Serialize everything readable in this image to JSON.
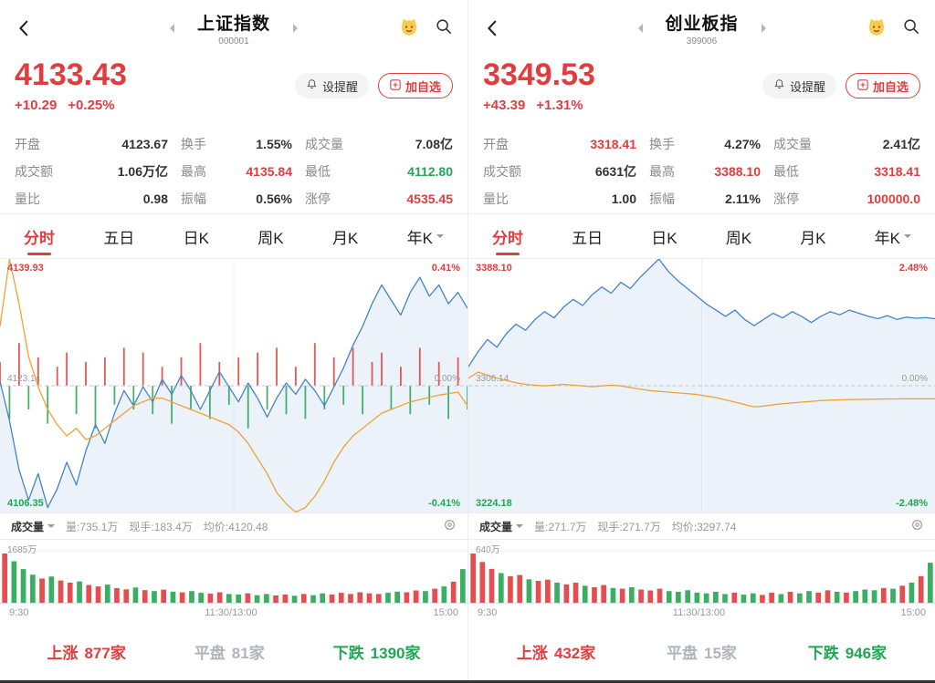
{
  "panels": [
    {
      "header": {
        "title": "上证指数",
        "code": "000001"
      },
      "price": {
        "value": "4133.43",
        "change": "+10.29",
        "pct": "+0.25%"
      },
      "actions": {
        "alert": "设提醒",
        "add": "加自选"
      },
      "stats": [
        {
          "label": "开盘",
          "value": "4123.67",
          "color": "dark"
        },
        {
          "label": "换手",
          "value": "1.55%",
          "color": "dark"
        },
        {
          "label": "成交量",
          "value": "7.08亿",
          "color": "dark"
        },
        {
          "label": "成交额",
          "value": "1.06万亿",
          "color": "dark"
        },
        {
          "label": "最高",
          "value": "4135.84",
          "color": "red"
        },
        {
          "label": "最低",
          "value": "4112.80",
          "color": "green"
        },
        {
          "label": "量比",
          "value": "0.98",
          "color": "dark"
        },
        {
          "label": "振幅",
          "value": "0.56%",
          "color": "dark"
        },
        {
          "label": "涨停",
          "value": "4535.45",
          "color": "red"
        }
      ],
      "tabs": [
        "分时",
        "五日",
        "日K",
        "周K",
        "月K",
        "年K"
      ],
      "chart_labels": {
        "high": "4139.93",
        "high_pct": "0.41%",
        "mid": "4123.14",
        "mid_pct": "0.00%",
        "low": "4106.35",
        "low_pct": "-0.41%"
      },
      "info": {
        "dropdown": "成交量",
        "volume": "量:735.1万",
        "current": "现手:183.4万",
        "avg": "均价:4120.48"
      },
      "volume_label": "1685万",
      "times": [
        "9:30",
        "11:30/13:00",
        "15:00"
      ],
      "breadth": {
        "up_label": "上涨",
        "up": "877家",
        "flat_label": "平盘",
        "flat": "81家",
        "down_label": "下跌",
        "down": "1390家"
      }
    },
    {
      "header": {
        "title": "创业板指",
        "code": "399006"
      },
      "price": {
        "value": "3349.53",
        "change": "+43.39",
        "pct": "+1.31%"
      },
      "actions": {
        "alert": "设提醒",
        "add": "加自选"
      },
      "stats": [
        {
          "label": "开盘",
          "value": "3318.41",
          "color": "red"
        },
        {
          "label": "换手",
          "value": "4.27%",
          "color": "dark"
        },
        {
          "label": "成交量",
          "value": "2.41亿",
          "color": "dark"
        },
        {
          "label": "成交额",
          "value": "6631亿",
          "color": "dark"
        },
        {
          "label": "最高",
          "value": "3388.10",
          "color": "red"
        },
        {
          "label": "最低",
          "value": "3318.41",
          "color": "red"
        },
        {
          "label": "量比",
          "value": "1.00",
          "color": "dark"
        },
        {
          "label": "振幅",
          "value": "2.11%",
          "color": "dark"
        },
        {
          "label": "涨停",
          "value": "100000.0",
          "color": "red"
        }
      ],
      "tabs": [
        "分时",
        "五日",
        "日K",
        "周K",
        "月K",
        "年K"
      ],
      "chart_labels": {
        "high": "3388.10",
        "high_pct": "2.48%",
        "mid": "3306.14",
        "mid_pct": "0.00%",
        "low": "3224.18",
        "low_pct": "-2.48%"
      },
      "info": {
        "dropdown": "成交量",
        "volume": "量:271.7万",
        "current": "现手:271.7万",
        "avg": "均价:3297.74"
      },
      "volume_label": "640万",
      "times": [
        "9:30",
        "11:30/13:00",
        "15:00"
      ],
      "breadth": {
        "up_label": "上涨",
        "up": "432家",
        "flat_label": "平盘",
        "flat": "15家",
        "down_label": "下跌",
        "down": "946家"
      }
    }
  ],
  "chart_data": [
    {
      "type": "line",
      "title": "上证指数 分时",
      "x_ticks": [
        "9:30",
        "11:30/13:00",
        "15:00"
      ],
      "ylim": [
        4106.35,
        4139.93
      ],
      "baseline": 4123.14,
      "pct_range": [
        "-0.41%",
        "0.41%"
      ],
      "series": [
        {
          "name": "价格",
          "color": "#4583cc",
          "values": [
            4123.7,
            4118.5,
            4112.0,
            4108.0,
            4111.5,
            4107.0,
            4109.5,
            4113.0,
            4110.0,
            4114.5,
            4118.0,
            4115.5,
            4119.5,
            4122.5,
            4120.5,
            4123.0,
            4121.0,
            4124.0,
            4122.0,
            4124.5,
            4122.5,
            4120.0,
            4122.5,
            4125.0,
            4123.0,
            4121.0,
            4123.5,
            4121.5,
            4119.0,
            4121.5,
            4123.5,
            4122.0,
            4124.0,
            4122.5,
            4120.5,
            4123.0,
            4125.5,
            4128.5,
            4131.0,
            4134.0,
            4136.5,
            4134.5,
            4132.5,
            4135.5,
            4137.5,
            4135.0,
            4136.5,
            4134.0,
            4135.5,
            4133.4
          ]
        },
        {
          "name": "均价",
          "color": "#f0a236",
          "values": [
            4131.0,
            4139.9,
            4134.0,
            4127.0,
            4123.0,
            4120.0,
            4118.0,
            4116.5,
            4117.5,
            4116.0,
            4116.5,
            4117.5,
            4118.5,
            4119.5,
            4120.5,
            4121.0,
            4121.5,
            4121.5,
            4121.0,
            4120.5,
            4120.0,
            4119.5,
            4119.0,
            4118.5,
            4118.0,
            4117.0,
            4115.5,
            4113.5,
            4111.5,
            4109.0,
            4107.5,
            4106.4,
            4107.0,
            4108.5,
            4110.5,
            4113.0,
            4115.0,
            4116.5,
            4117.5,
            4118.5,
            4119.5,
            4120.0,
            4120.5,
            4121.0,
            4121.3,
            4121.6,
            4121.9,
            4122.1,
            4122.3,
            4120.5
          ]
        }
      ],
      "center_bars": [
        0.5,
        -0.7,
        0.9,
        -0.5,
        0.6,
        -0.8,
        0.4,
        0.7,
        -0.6,
        0.5,
        -0.9,
        0.6,
        -0.4,
        0.8,
        -0.5,
        0.7,
        -0.6,
        0.4,
        -0.8,
        0.6,
        -0.5,
        0.9,
        -0.7,
        0.5,
        -0.4,
        0.6,
        -0.9,
        0.7,
        -0.5,
        0.8,
        -0.6,
        0.4,
        -0.7,
        0.9,
        -0.5,
        0.6,
        -0.4,
        0.8,
        -0.6,
        0.5,
        0.7,
        -0.5,
        0.4,
        -0.6,
        0.8,
        -0.4,
        0.5,
        -0.7,
        0.6,
        -0.5
      ],
      "volume": {
        "max": 1685,
        "max_label": "1685万",
        "values": [
          1685,
          1420,
          1150,
          960,
          830,
          900,
          760,
          690,
          730,
          610,
          560,
          620,
          500,
          460,
          520,
          430,
          400,
          450,
          380,
          355,
          400,
          340,
          315,
          360,
          300,
          280,
          320,
          260,
          300,
          250,
          280,
          240,
          300,
          260,
          320,
          280,
          340,
          300,
          360,
          320,
          300,
          340,
          380,
          360,
          420,
          400,
          480,
          560,
          720,
          1150
        ]
      }
    },
    {
      "type": "line",
      "title": "创业板指 分时",
      "x_ticks": [
        "9:30",
        "11:30/13:00",
        "15:00"
      ],
      "ylim": [
        3224.18,
        3388.1
      ],
      "baseline": 3306.14,
      "pct_range": [
        "-2.48%",
        "2.48%"
      ],
      "series": [
        {
          "name": "价格",
          "color": "#4583cc",
          "values": [
            3318.4,
            3328.0,
            3336.0,
            3331.0,
            3340.0,
            3346.0,
            3342.0,
            3349.0,
            3354.0,
            3350.0,
            3357.0,
            3362.0,
            3358.0,
            3365.0,
            3370.0,
            3366.0,
            3373.0,
            3369.0,
            3376.0,
            3382.0,
            3388.1,
            3380.0,
            3374.0,
            3369.0,
            3364.0,
            3359.0,
            3355.0,
            3351.0,
            3355.0,
            3349.0,
            3345.0,
            3349.0,
            3353.0,
            3350.0,
            3354.0,
            3351.0,
            3347.0,
            3351.0,
            3354.0,
            3352.0,
            3355.0,
            3353.0,
            3351.0,
            3349.5,
            3351.5,
            3349.0,
            3350.5,
            3349.8,
            3350.2,
            3349.5
          ]
        },
        {
          "name": "均价",
          "color": "#f0a236",
          "values": [
            3311.0,
            3315.0,
            3313.0,
            3311.0,
            3309.5,
            3308.0,
            3307.0,
            3306.5,
            3306.0,
            3306.5,
            3307.0,
            3306.5,
            3306.0,
            3305.5,
            3306.0,
            3306.5,
            3306.0,
            3305.0,
            3304.0,
            3303.0,
            3302.5,
            3302.0,
            3301.5,
            3301.0,
            3300.5,
            3299.5,
            3298.5,
            3297.0,
            3295.5,
            3294.0,
            3292.5,
            3293.0,
            3293.8,
            3294.5,
            3295.0,
            3295.5,
            3296.0,
            3296.5,
            3296.8,
            3297.0,
            3297.2,
            3297.3,
            3297.4,
            3297.5,
            3297.6,
            3297.6,
            3297.7,
            3297.7,
            3297.7,
            3297.7
          ]
        }
      ],
      "center_bars": [],
      "volume": {
        "max": 640,
        "max_label": "640万",
        "values": [
          640,
          530,
          440,
          385,
          345,
          360,
          305,
          285,
          300,
          262,
          240,
          262,
          222,
          202,
          230,
          192,
          182,
          202,
          172,
          160,
          182,
          152,
          142,
          162,
          132,
          122,
          142,
          112,
          132,
          106,
          122,
          102,
          132,
          112,
          142,
          122,
          152,
          132,
          162,
          142,
          132,
          152,
          172,
          162,
          192,
          182,
          222,
          262,
          345,
          520
        ]
      }
    }
  ]
}
